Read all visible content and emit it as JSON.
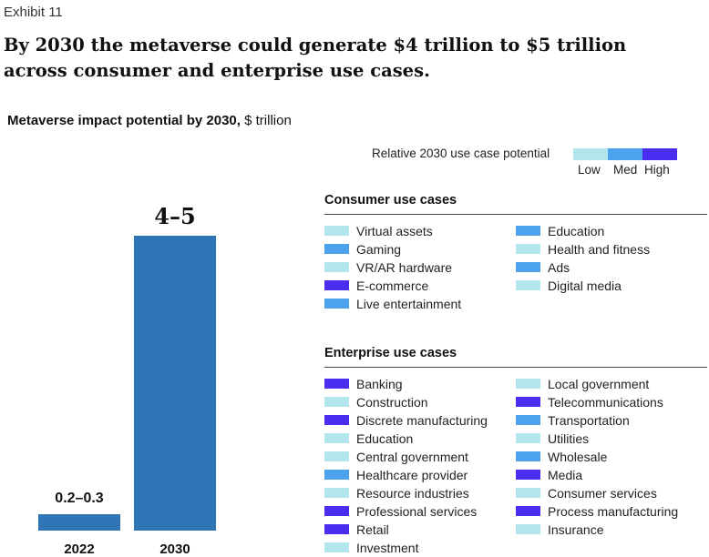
{
  "exhibit": "Exhibit 11",
  "headline": "By 2030 the metaverse could generate $4 trillion to $5 trillion across consumer and enterprise use cases.",
  "subtitle": {
    "bold": "Metaverse impact potential by 2030,",
    "unit": " $ trillion"
  },
  "colors": {
    "low": "#b2e6ec",
    "med": "#4ba3ee",
    "high": "#4a2ef0",
    "bar": "#2f74b4"
  },
  "legend": {
    "title": "Relative 2030 use case potential",
    "levels": [
      {
        "key": "low",
        "label": "Low"
      },
      {
        "key": "med",
        "label": "Med"
      },
      {
        "key": "high",
        "label": "High"
      }
    ]
  },
  "chart_data": {
    "type": "bar",
    "categories": [
      "2022",
      "2030"
    ],
    "values": [
      0.25,
      4.5
    ],
    "value_labels": [
      "0.2–0.3",
      "4–5"
    ],
    "ylim": [
      0,
      4.5
    ],
    "grid": false
  },
  "consumer": {
    "title": "Consumer use cases",
    "columns": [
      [
        {
          "label": "Virtual assets",
          "level": "low"
        },
        {
          "label": "Gaming",
          "level": "med"
        },
        {
          "label": "VR/AR hardware",
          "level": "low"
        },
        {
          "label": "E-commerce",
          "level": "high"
        },
        {
          "label": "Live entertainment",
          "level": "med"
        }
      ],
      [
        {
          "label": "Education",
          "level": "med"
        },
        {
          "label": "Health and fitness",
          "level": "low"
        },
        {
          "label": "Ads",
          "level": "med"
        },
        {
          "label": "Digital media",
          "level": "low"
        }
      ]
    ]
  },
  "enterprise": {
    "title": "Enterprise use cases",
    "columns": [
      [
        {
          "label": "Banking",
          "level": "high"
        },
        {
          "label": "Construction",
          "level": "low"
        },
        {
          "label": "Discrete manufacturing",
          "level": "high"
        },
        {
          "label": "Education",
          "level": "low"
        },
        {
          "label": "Central government",
          "level": "low"
        },
        {
          "label": "Healthcare provider",
          "level": "med"
        },
        {
          "label": "Resource industries",
          "level": "low"
        },
        {
          "label": "Professional services",
          "level": "high"
        },
        {
          "label": "Retail",
          "level": "high"
        },
        {
          "label": "Investment",
          "level": "low"
        }
      ],
      [
        {
          "label": "Local government",
          "level": "low"
        },
        {
          "label": "Telecommunications",
          "level": "high"
        },
        {
          "label": "Transportation",
          "level": "med"
        },
        {
          "label": "Utilities",
          "level": "low"
        },
        {
          "label": "Wholesale",
          "level": "med"
        },
        {
          "label": "Media",
          "level": "high"
        },
        {
          "label": "Consumer services",
          "level": "low"
        },
        {
          "label": "Process manufacturing",
          "level": "high"
        },
        {
          "label": "Insurance",
          "level": "low"
        }
      ]
    ]
  }
}
